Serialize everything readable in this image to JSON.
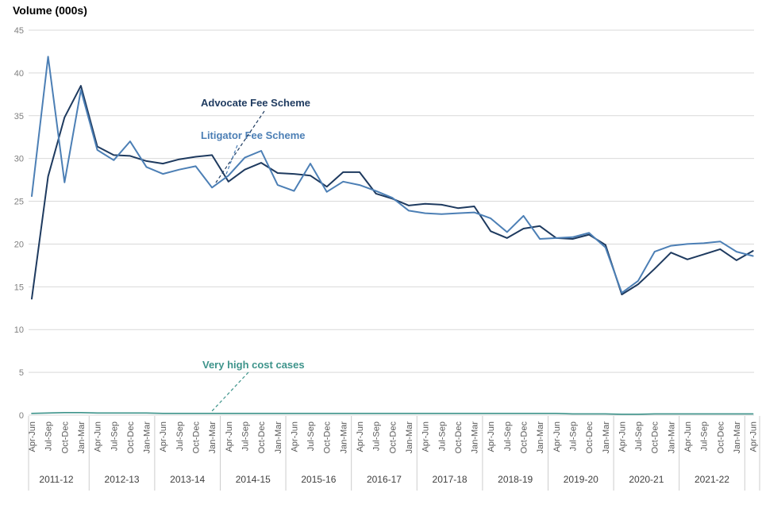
{
  "chart_data": {
    "type": "line",
    "title": "Volume (000s)",
    "grid": true,
    "legend_position": "inline-annotations",
    "y_axis": {
      "min": 0,
      "max": 45,
      "ticks": [
        0,
        5,
        10,
        15,
        20,
        25,
        30,
        35,
        40,
        45
      ]
    },
    "x_axis": {
      "quarter_pattern": [
        "Apr-Jun",
        "Jul-Sep",
        "Oct-Dec",
        "Jan-Mar"
      ],
      "years": [
        "2011-12",
        "2012-13",
        "2013-14",
        "2014-15",
        "2015-16",
        "2016-17",
        "2017-18",
        "2018-19",
        "2019-20",
        "2020-21",
        "2021-22"
      ],
      "trailing_quarter": "Apr-Jun"
    },
    "series": [
      {
        "name": "Advocate Fee Scheme",
        "color": "#1e3a5f",
        "values": [
          13.6,
          27.9,
          34.8,
          38.5,
          31.4,
          30.4,
          30.3,
          29.7,
          29.4,
          29.9,
          30.2,
          30.4,
          27.3,
          28.7,
          29.5,
          28.3,
          28.2,
          28.0,
          26.7,
          28.4,
          28.4,
          25.9,
          25.3,
          24.5,
          24.7,
          24.6,
          24.2,
          24.4,
          21.5,
          20.7,
          21.8,
          22.1,
          20.7,
          20.6,
          21.1,
          19.9,
          14.1,
          15.3,
          17.1,
          19.0,
          18.2,
          18.8,
          19.4,
          18.1,
          19.2
        ]
      },
      {
        "name": "Litigator Fee Scheme",
        "color": "#4c7fb5",
        "values": [
          25.6,
          41.9,
          27.2,
          38.0,
          31.0,
          29.8,
          32.0,
          29.0,
          28.2,
          28.7,
          29.1,
          26.6,
          28.0,
          30.1,
          30.9,
          26.9,
          26.2,
          29.4,
          26.1,
          27.3,
          26.9,
          26.2,
          25.4,
          23.9,
          23.6,
          23.5,
          23.6,
          23.7,
          23.0,
          21.4,
          23.3,
          20.6,
          20.7,
          20.8,
          21.3,
          19.6,
          14.3,
          15.7,
          19.1,
          19.8,
          20.0,
          20.1,
          20.3,
          19.1,
          18.6
        ]
      },
      {
        "name": "Very high cost cases",
        "color": "#3e948b",
        "values": [
          0.2,
          0.25,
          0.3,
          0.3,
          0.25,
          0.25,
          0.25,
          0.25,
          0.2,
          0.2,
          0.2,
          0.2,
          0.2,
          0.2,
          0.2,
          0.2,
          0.2,
          0.2,
          0.2,
          0.2,
          0.2,
          0.2,
          0.2,
          0.2,
          0.2,
          0.2,
          0.2,
          0.2,
          0.2,
          0.2,
          0.2,
          0.2,
          0.2,
          0.15,
          0.15,
          0.15,
          0.1,
          0.1,
          0.15,
          0.15,
          0.15,
          0.15,
          0.15,
          0.15,
          0.15
        ]
      }
    ],
    "style_colors": {
      "gridline": "#d9d9d9",
      "separator": "#cccccc",
      "y_tick_text": "#7f7f7f",
      "quarter_text": "#595959",
      "year_text": "#404040"
    }
  }
}
